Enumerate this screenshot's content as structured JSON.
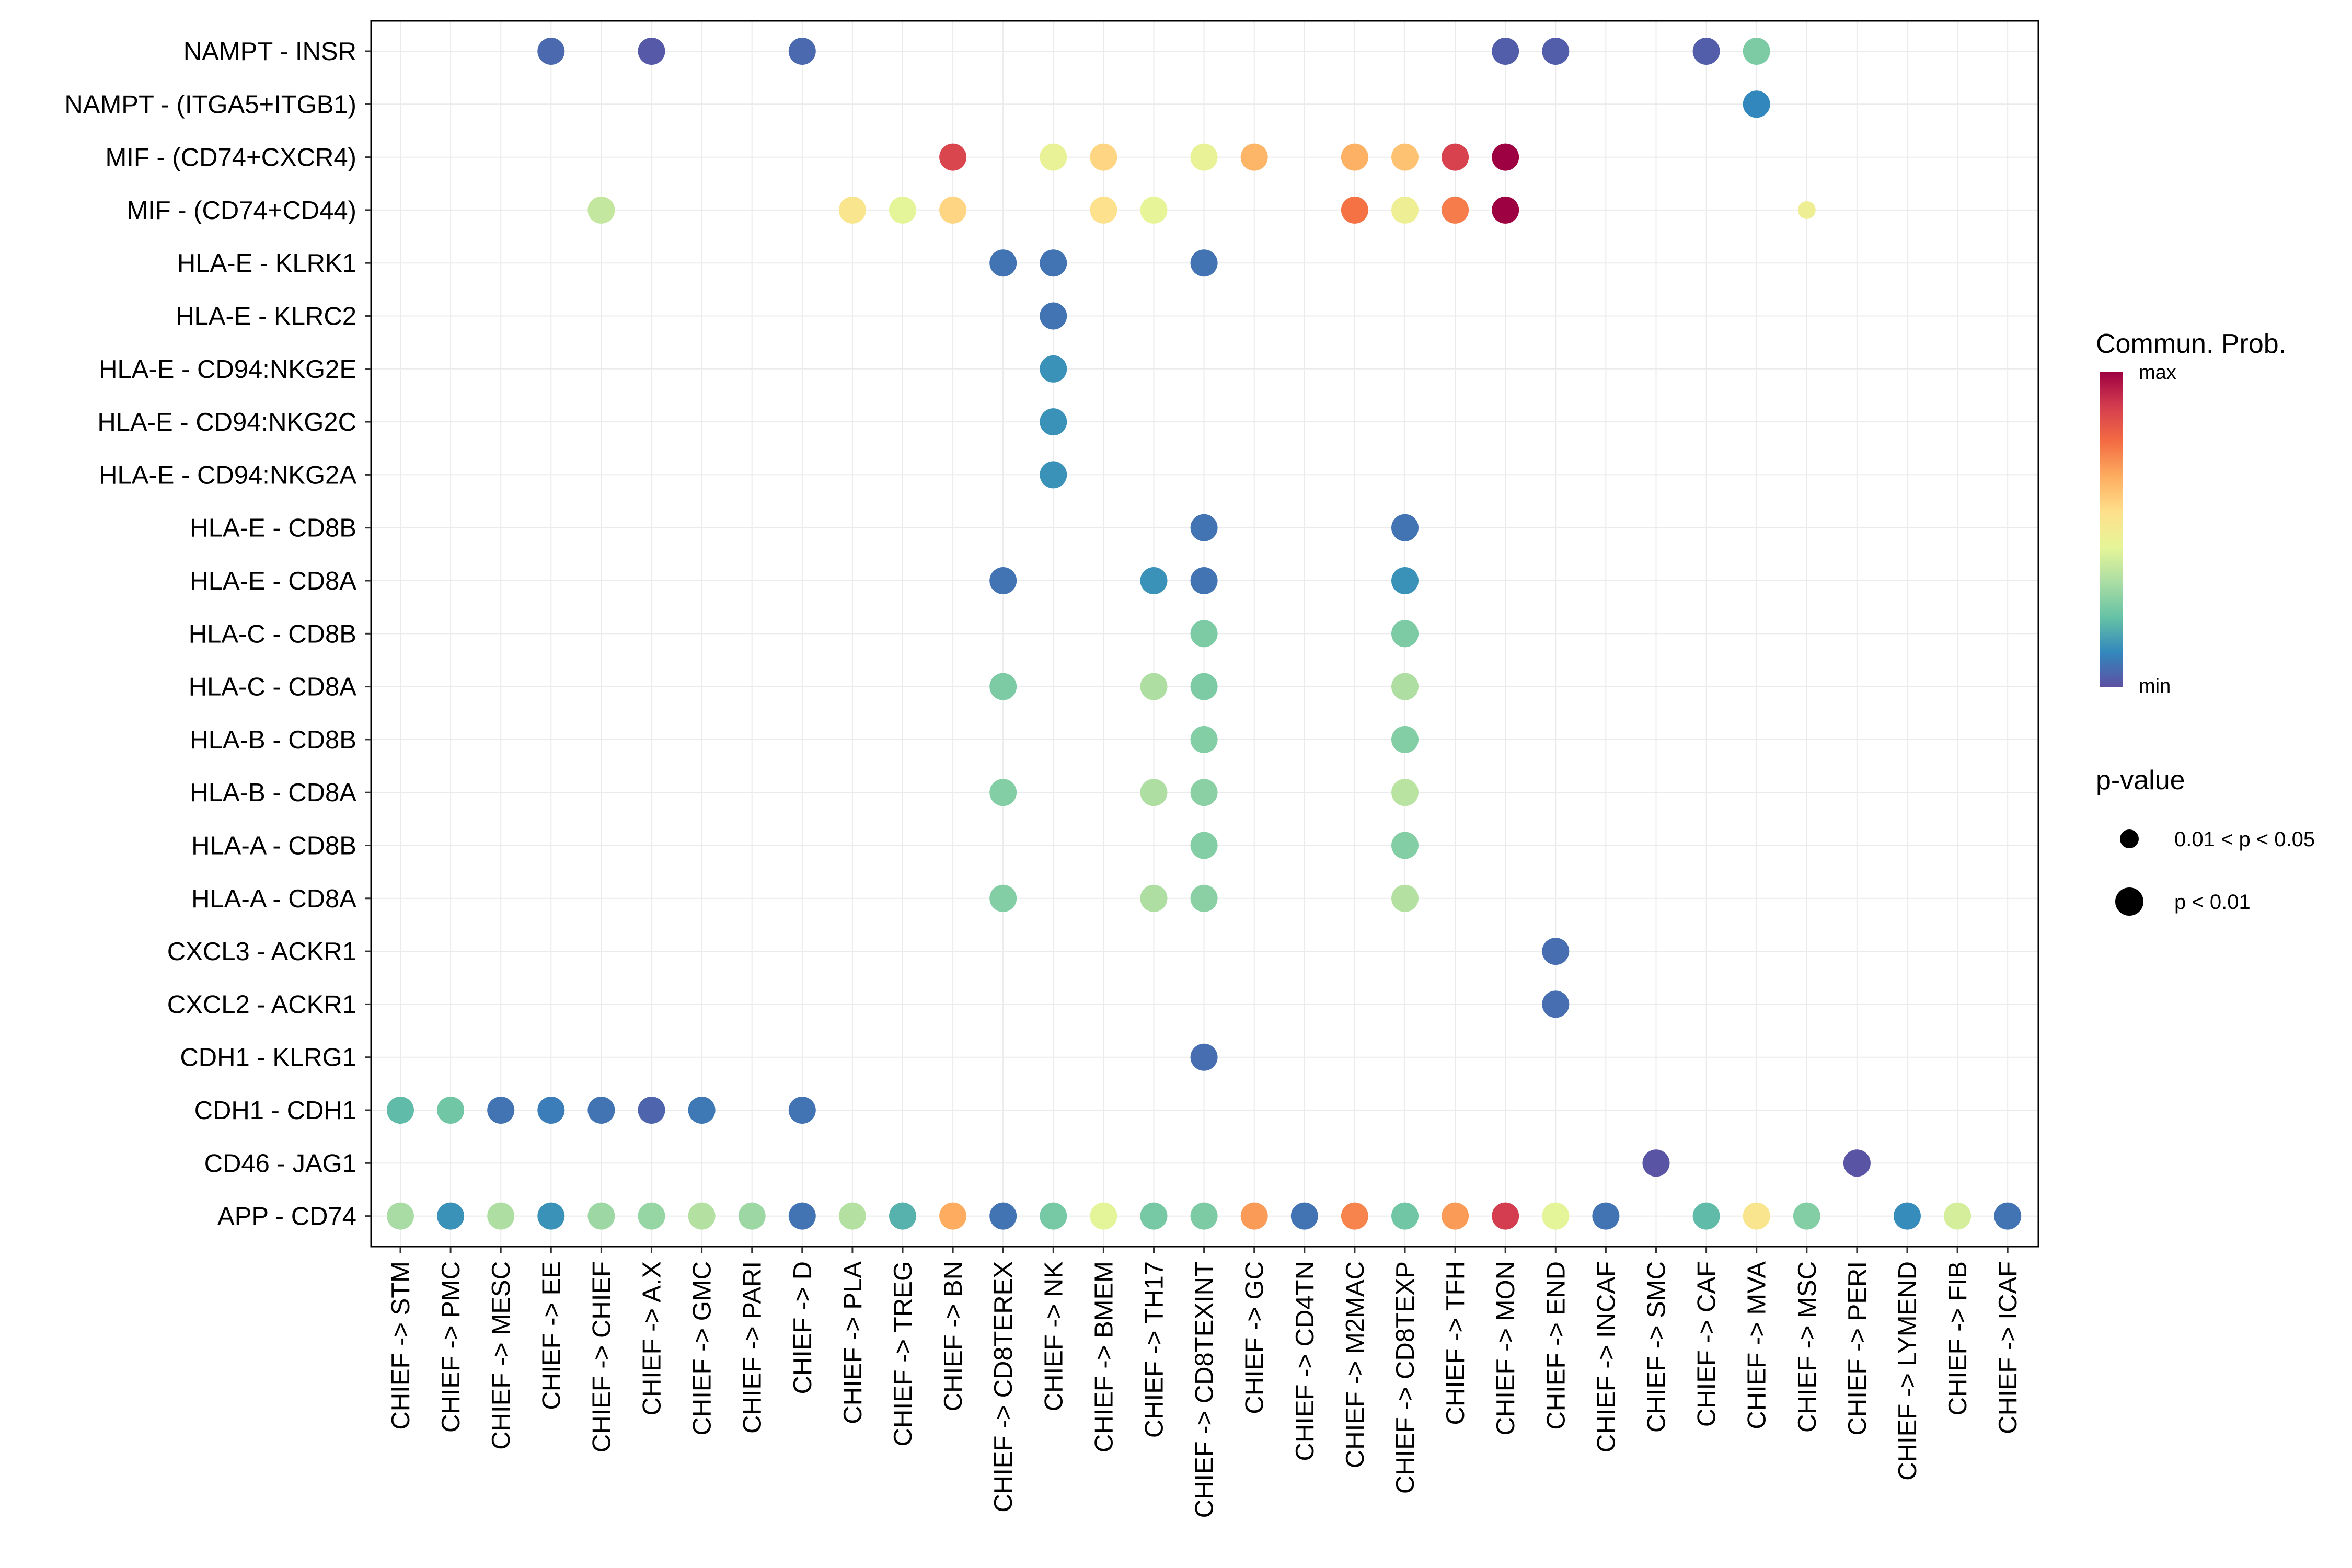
{
  "chart_data": {
    "type": "dot",
    "color_legend": {
      "title": "Commun. Prob.",
      "max_label": "max",
      "min_label": "min"
    },
    "size_legend": {
      "title": "p-value",
      "entries": [
        "0.01 < p < 0.05",
        "p < 0.01"
      ]
    },
    "color_scale": [
      "#5E4FA2",
      "#3288BD",
      "#66C2A5",
      "#ABDDA4",
      "#E6F598",
      "#FEE08B",
      "#FDAE61",
      "#F46D43",
      "#D53E4F",
      "#9E0142"
    ],
    "x_categories": [
      "CHIEF -> STM",
      "CHIEF -> PMC",
      "CHIEF -> MESC",
      "CHIEF -> EE",
      "CHIEF -> CHIEF",
      "CHIEF -> A.X",
      "CHIEF -> GMC",
      "CHIEF -> PARI",
      "CHIEF -> D",
      "CHIEF -> PLA",
      "CHIEF -> TREG",
      "CHIEF -> BN",
      "CHIEF -> CD8TEREX",
      "CHIEF -> NK",
      "CHIEF -> BMEM",
      "CHIEF -> TH17",
      "CHIEF -> CD8TEXINT",
      "CHIEF -> GC",
      "CHIEF -> CD4TN",
      "CHIEF -> M2MAC",
      "CHIEF -> CD8TEXP",
      "CHIEF -> TFH",
      "CHIEF -> MON",
      "CHIEF -> END",
      "CHIEF -> INCAF",
      "CHIEF -> SMC",
      "CHIEF -> CAF",
      "CHIEF -> MVA",
      "CHIEF -> MSC",
      "CHIEF -> PERI",
      "CHIEF -> LYMEND",
      "CHIEF -> FIB",
      "CHIEF -> ICAF"
    ],
    "y_categories": [
      "NAMPT - INSR",
      "NAMPT - (ITGA5+ITGB1)",
      "MIF - (CD74+CXCR4)",
      "MIF - (CD74+CD44)",
      "HLA-E - KLRK1",
      "HLA-E - KLRC2",
      "HLA-E - CD94:NKG2E",
      "HLA-E - CD94:NKG2C",
      "HLA-E - CD94:NKG2A",
      "HLA-E - CD8B",
      "HLA-E - CD8A",
      "HLA-C - CD8B",
      "HLA-C - CD8A",
      "HLA-B - CD8B",
      "HLA-B - CD8A",
      "HLA-A - CD8B",
      "HLA-A - CD8A",
      "CXCL3 - ACKR1",
      "CXCL2 - ACKR1",
      "CDH1 - KLRG1",
      "CDH1 - CDH1",
      "CD46 - JAG1",
      "APP - CD74"
    ],
    "points": [
      {
        "x": "CHIEF -> EE",
        "y": "NAMPT - INSR",
        "prob": 0.05,
        "p": "p < 0.01"
      },
      {
        "x": "CHIEF -> A.X",
        "y": "NAMPT - INSR",
        "prob": 0.02,
        "p": "p < 0.01"
      },
      {
        "x": "CHIEF -> D",
        "y": "NAMPT - INSR",
        "prob": 0.05,
        "p": "p < 0.01"
      },
      {
        "x": "CHIEF -> MON",
        "y": "NAMPT - INSR",
        "prob": 0.03,
        "p": "p < 0.01"
      },
      {
        "x": "CHIEF -> END",
        "y": "NAMPT - INSR",
        "prob": 0.03,
        "p": "p < 0.01"
      },
      {
        "x": "CHIEF -> CAF",
        "y": "NAMPT - INSR",
        "prob": 0.03,
        "p": "p < 0.01"
      },
      {
        "x": "CHIEF -> MVA",
        "y": "NAMPT - INSR",
        "prob": 0.26,
        "p": "p < 0.01"
      },
      {
        "x": "CHIEF -> MVA",
        "y": "NAMPT - (ITGA5+ITGB1)",
        "prob": 0.11,
        "p": "p < 0.01"
      },
      {
        "x": "CHIEF -> BN",
        "y": "MIF - (CD74+CXCR4)",
        "prob": 0.87,
        "p": "p < 0.01"
      },
      {
        "x": "CHIEF -> NK",
        "y": "MIF - (CD74+CXCR4)",
        "prob": 0.46,
        "p": "p < 0.01"
      },
      {
        "x": "CHIEF -> BMEM",
        "y": "MIF - (CD74+CXCR4)",
        "prob": 0.58,
        "p": "p < 0.01"
      },
      {
        "x": "CHIEF -> CD8TEXINT",
        "y": "MIF - (CD74+CXCR4)",
        "prob": 0.46,
        "p": "p < 0.01"
      },
      {
        "x": "CHIEF -> GC",
        "y": "MIF - (CD74+CXCR4)",
        "prob": 0.65,
        "p": "p < 0.01"
      },
      {
        "x": "CHIEF -> M2MAC",
        "y": "MIF - (CD74+CXCR4)",
        "prob": 0.66,
        "p": "p < 0.01"
      },
      {
        "x": "CHIEF -> CD8TEXP",
        "y": "MIF - (CD74+CXCR4)",
        "prob": 0.62,
        "p": "p < 0.01"
      },
      {
        "x": "CHIEF -> TFH",
        "y": "MIF - (CD74+CXCR4)",
        "prob": 0.88,
        "p": "p < 0.01"
      },
      {
        "x": "CHIEF -> MON",
        "y": "MIF - (CD74+CXCR4)",
        "prob": 1.0,
        "p": "p < 0.01"
      },
      {
        "x": "CHIEF -> CHIEF",
        "y": "MIF - (CD74+CD44)",
        "prob": 0.38,
        "p": "p < 0.01"
      },
      {
        "x": "CHIEF -> PLA",
        "y": "MIF - (CD74+CD44)",
        "prob": 0.53,
        "p": "p < 0.01"
      },
      {
        "x": "CHIEF -> TREG",
        "y": "MIF - (CD74+CD44)",
        "prob": 0.44,
        "p": "p < 0.01"
      },
      {
        "x": "CHIEF -> BN",
        "y": "MIF - (CD74+CD44)",
        "prob": 0.58,
        "p": "p < 0.01"
      },
      {
        "x": "CHIEF -> BMEM",
        "y": "MIF - (CD74+CD44)",
        "prob": 0.55,
        "p": "p < 0.01"
      },
      {
        "x": "CHIEF -> TH17",
        "y": "MIF - (CD74+CD44)",
        "prob": 0.45,
        "p": "p < 0.01"
      },
      {
        "x": "CHIEF -> M2MAC",
        "y": "MIF - (CD74+CD44)",
        "prob": 0.77,
        "p": "p < 0.01"
      },
      {
        "x": "CHIEF -> CD8TEXP",
        "y": "MIF - (CD74+CD44)",
        "prob": 0.48,
        "p": "p < 0.01"
      },
      {
        "x": "CHIEF -> TFH",
        "y": "MIF - (CD74+CD44)",
        "prob": 0.75,
        "p": "p < 0.01"
      },
      {
        "x": "CHIEF -> MON",
        "y": "MIF - (CD74+CD44)",
        "prob": 1.0,
        "p": "p < 0.01"
      },
      {
        "x": "CHIEF -> MSC",
        "y": "MIF - (CD74+CD44)",
        "prob": 0.48,
        "p": "0.01 < p < 0.05"
      },
      {
        "x": "CHIEF -> CD8TEREX",
        "y": "HLA-E - KLRK1",
        "prob": 0.07,
        "p": "p < 0.01"
      },
      {
        "x": "CHIEF -> NK",
        "y": "HLA-E - KLRK1",
        "prob": 0.07,
        "p": "p < 0.01"
      },
      {
        "x": "CHIEF -> CD8TEXINT",
        "y": "HLA-E - KLRK1",
        "prob": 0.07,
        "p": "p < 0.01"
      },
      {
        "x": "CHIEF -> NK",
        "y": "HLA-E - KLRC2",
        "prob": 0.07,
        "p": "p < 0.01"
      },
      {
        "x": "CHIEF -> NK",
        "y": "HLA-E - CD94:NKG2E",
        "prob": 0.13,
        "p": "p < 0.01"
      },
      {
        "x": "CHIEF -> NK",
        "y": "HLA-E - CD94:NKG2C",
        "prob": 0.13,
        "p": "p < 0.01"
      },
      {
        "x": "CHIEF -> NK",
        "y": "HLA-E - CD94:NKG2A",
        "prob": 0.13,
        "p": "p < 0.01"
      },
      {
        "x": "CHIEF -> CD8TEXINT",
        "y": "HLA-E - CD8B",
        "prob": 0.07,
        "p": "p < 0.01"
      },
      {
        "x": "CHIEF -> CD8TEXP",
        "y": "HLA-E - CD8B",
        "prob": 0.07,
        "p": "p < 0.01"
      },
      {
        "x": "CHIEF -> CD8TEREX",
        "y": "HLA-E - CD8A",
        "prob": 0.07,
        "p": "p < 0.01"
      },
      {
        "x": "CHIEF -> TH17",
        "y": "HLA-E - CD8A",
        "prob": 0.13,
        "p": "p < 0.01"
      },
      {
        "x": "CHIEF -> CD8TEXINT",
        "y": "HLA-E - CD8A",
        "prob": 0.07,
        "p": "p < 0.01"
      },
      {
        "x": "CHIEF -> CD8TEXP",
        "y": "HLA-E - CD8A",
        "prob": 0.13,
        "p": "p < 0.01"
      },
      {
        "x": "CHIEF -> CD8TEXINT",
        "y": "HLA-C - CD8B",
        "prob": 0.26,
        "p": "p < 0.01"
      },
      {
        "x": "CHIEF -> CD8TEXP",
        "y": "HLA-C - CD8B",
        "prob": 0.26,
        "p": "p < 0.01"
      },
      {
        "x": "CHIEF -> CD8TEREX",
        "y": "HLA-C - CD8A",
        "prob": 0.26,
        "p": "p < 0.01"
      },
      {
        "x": "CHIEF -> TH17",
        "y": "HLA-C - CD8A",
        "prob": 0.34,
        "p": "p < 0.01"
      },
      {
        "x": "CHIEF -> CD8TEXINT",
        "y": "HLA-C - CD8A",
        "prob": 0.26,
        "p": "p < 0.01"
      },
      {
        "x": "CHIEF -> CD8TEXP",
        "y": "HLA-C - CD8A",
        "prob": 0.34,
        "p": "p < 0.01"
      },
      {
        "x": "CHIEF -> CD8TEXINT",
        "y": "HLA-B - CD8B",
        "prob": 0.27,
        "p": "p < 0.01"
      },
      {
        "x": "CHIEF -> CD8TEXP",
        "y": "HLA-B - CD8B",
        "prob": 0.27,
        "p": "p < 0.01"
      },
      {
        "x": "CHIEF -> CD8TEREX",
        "y": "HLA-B - CD8A",
        "prob": 0.27,
        "p": "p < 0.01"
      },
      {
        "x": "CHIEF -> TH17",
        "y": "HLA-B - CD8A",
        "prob": 0.34,
        "p": "p < 0.01"
      },
      {
        "x": "CHIEF -> CD8TEXINT",
        "y": "HLA-B - CD8A",
        "prob": 0.28,
        "p": "p < 0.01"
      },
      {
        "x": "CHIEF -> CD8TEXP",
        "y": "HLA-B - CD8A",
        "prob": 0.36,
        "p": "p < 0.01"
      },
      {
        "x": "CHIEF -> CD8TEXINT",
        "y": "HLA-A - CD8B",
        "prob": 0.27,
        "p": "p < 0.01"
      },
      {
        "x": "CHIEF -> CD8TEXP",
        "y": "HLA-A - CD8B",
        "prob": 0.27,
        "p": "p < 0.01"
      },
      {
        "x": "CHIEF -> CD8TEREX",
        "y": "HLA-A - CD8A",
        "prob": 0.27,
        "p": "p < 0.01"
      },
      {
        "x": "CHIEF -> TH17",
        "y": "HLA-A - CD8A",
        "prob": 0.34,
        "p": "p < 0.01"
      },
      {
        "x": "CHIEF -> CD8TEXINT",
        "y": "HLA-A - CD8A",
        "prob": 0.28,
        "p": "p < 0.01"
      },
      {
        "x": "CHIEF -> CD8TEXP",
        "y": "HLA-A - CD8A",
        "prob": 0.35,
        "p": "p < 0.01"
      },
      {
        "x": "CHIEF -> END",
        "y": "CXCL3 - ACKR1",
        "prob": 0.06,
        "p": "p < 0.01"
      },
      {
        "x": "CHIEF -> END",
        "y": "CXCL2 - ACKR1",
        "prob": 0.06,
        "p": "p < 0.01"
      },
      {
        "x": "CHIEF -> CD8TEXINT",
        "y": "CDH1 - KLRG1",
        "prob": 0.06,
        "p": "p < 0.01"
      },
      {
        "x": "CHIEF -> STM",
        "y": "CDH1 - CDH1",
        "prob": 0.21,
        "p": "p < 0.01"
      },
      {
        "x": "CHIEF -> PMC",
        "y": "CDH1 - CDH1",
        "prob": 0.24,
        "p": "p < 0.01"
      },
      {
        "x": "CHIEF -> MESC",
        "y": "CDH1 - CDH1",
        "prob": 0.07,
        "p": "p < 0.01"
      },
      {
        "x": "CHIEF -> EE",
        "y": "CDH1 - CDH1",
        "prob": 0.09,
        "p": "p < 0.01"
      },
      {
        "x": "CHIEF -> CHIEF",
        "y": "CDH1 - CDH1",
        "prob": 0.07,
        "p": "p < 0.01"
      },
      {
        "x": "CHIEF -> A.X",
        "y": "CDH1 - CDH1",
        "prob": 0.04,
        "p": "p < 0.01"
      },
      {
        "x": "CHIEF -> GMC",
        "y": "CDH1 - CDH1",
        "prob": 0.08,
        "p": "p < 0.01"
      },
      {
        "x": "CHIEF -> D",
        "y": "CDH1 - CDH1",
        "prob": 0.07,
        "p": "p < 0.01"
      },
      {
        "x": "CHIEF -> SMC",
        "y": "CD46 - JAG1",
        "prob": 0.01,
        "p": "p < 0.01"
      },
      {
        "x": "CHIEF -> PERI",
        "y": "CD46 - JAG1",
        "prob": 0.01,
        "p": "p < 0.01"
      },
      {
        "x": "CHIEF -> STM",
        "y": "APP - CD74",
        "prob": 0.33,
        "p": "p < 0.01"
      },
      {
        "x": "CHIEF -> PMC",
        "y": "APP - CD74",
        "prob": 0.13,
        "p": "p < 0.01"
      },
      {
        "x": "CHIEF -> MESC",
        "y": "APP - CD74",
        "prob": 0.34,
        "p": "p < 0.01"
      },
      {
        "x": "CHIEF -> EE",
        "y": "APP - CD74",
        "prob": 0.13,
        "p": "p < 0.01"
      },
      {
        "x": "CHIEF -> CHIEF",
        "y": "APP - CD74",
        "prob": 0.31,
        "p": "p < 0.01"
      },
      {
        "x": "CHIEF -> A.X",
        "y": "APP - CD74",
        "prob": 0.3,
        "p": "p < 0.01"
      },
      {
        "x": "CHIEF -> GMC",
        "y": "APP - CD74",
        "prob": 0.35,
        "p": "p < 0.01"
      },
      {
        "x": "CHIEF -> PARI",
        "y": "APP - CD74",
        "prob": 0.31,
        "p": "p < 0.01"
      },
      {
        "x": "CHIEF -> D",
        "y": "APP - CD74",
        "prob": 0.07,
        "p": "p < 0.01"
      },
      {
        "x": "CHIEF -> PLA",
        "y": "APP - CD74",
        "prob": 0.35,
        "p": "p < 0.01"
      },
      {
        "x": "CHIEF -> TREG",
        "y": "APP - CD74",
        "prob": 0.19,
        "p": "p < 0.01"
      },
      {
        "x": "CHIEF -> BN",
        "y": "APP - CD74",
        "prob": 0.67,
        "p": "p < 0.01"
      },
      {
        "x": "CHIEF -> CD8TEREX",
        "y": "APP - CD74",
        "prob": 0.07,
        "p": "p < 0.01"
      },
      {
        "x": "CHIEF -> NK",
        "y": "APP - CD74",
        "prob": 0.25,
        "p": "p < 0.01"
      },
      {
        "x": "CHIEF -> BMEM",
        "y": "APP - CD74",
        "prob": 0.44,
        "p": "p < 0.01"
      },
      {
        "x": "CHIEF -> TH17",
        "y": "APP - CD74",
        "prob": 0.25,
        "p": "p < 0.01"
      },
      {
        "x": "CHIEF -> CD8TEXINT",
        "y": "APP - CD74",
        "prob": 0.26,
        "p": "p < 0.01"
      },
      {
        "x": "CHIEF -> GC",
        "y": "APP - CD74",
        "prob": 0.7,
        "p": "p < 0.01"
      },
      {
        "x": "CHIEF -> CD4TN",
        "y": "APP - CD74",
        "prob": 0.07,
        "p": "p < 0.01"
      },
      {
        "x": "CHIEF -> M2MAC",
        "y": "APP - CD74",
        "prob": 0.74,
        "p": "p < 0.01"
      },
      {
        "x": "CHIEF -> CD8TEXP",
        "y": "APP - CD74",
        "prob": 0.24,
        "p": "p < 0.01"
      },
      {
        "x": "CHIEF -> TFH",
        "y": "APP - CD74",
        "prob": 0.7,
        "p": "p < 0.01"
      },
      {
        "x": "CHIEF -> MON",
        "y": "APP - CD74",
        "prob": 0.89,
        "p": "p < 0.01"
      },
      {
        "x": "CHIEF -> END",
        "y": "APP - CD74",
        "prob": 0.44,
        "p": "p < 0.01"
      },
      {
        "x": "CHIEF -> INCAF",
        "y": "APP - CD74",
        "prob": 0.07,
        "p": "p < 0.01"
      },
      {
        "x": "CHIEF -> CAF",
        "y": "APP - CD74",
        "prob": 0.21,
        "p": "p < 0.01"
      },
      {
        "x": "CHIEF -> MVA",
        "y": "APP - CD74",
        "prob": 0.53,
        "p": "p < 0.01"
      },
      {
        "x": "CHIEF -> MSC",
        "y": "APP - CD74",
        "prob": 0.27,
        "p": "p < 0.01"
      },
      {
        "x": "CHIEF -> LYMEND",
        "y": "APP - CD74",
        "prob": 0.12,
        "p": "p < 0.01"
      },
      {
        "x": "CHIEF -> FIB",
        "y": "APP - CD74",
        "prob": 0.41,
        "p": "p < 0.01"
      },
      {
        "x": "CHIEF -> ICAF",
        "y": "APP - CD74",
        "prob": 0.07,
        "p": "p < 0.01"
      }
    ]
  }
}
